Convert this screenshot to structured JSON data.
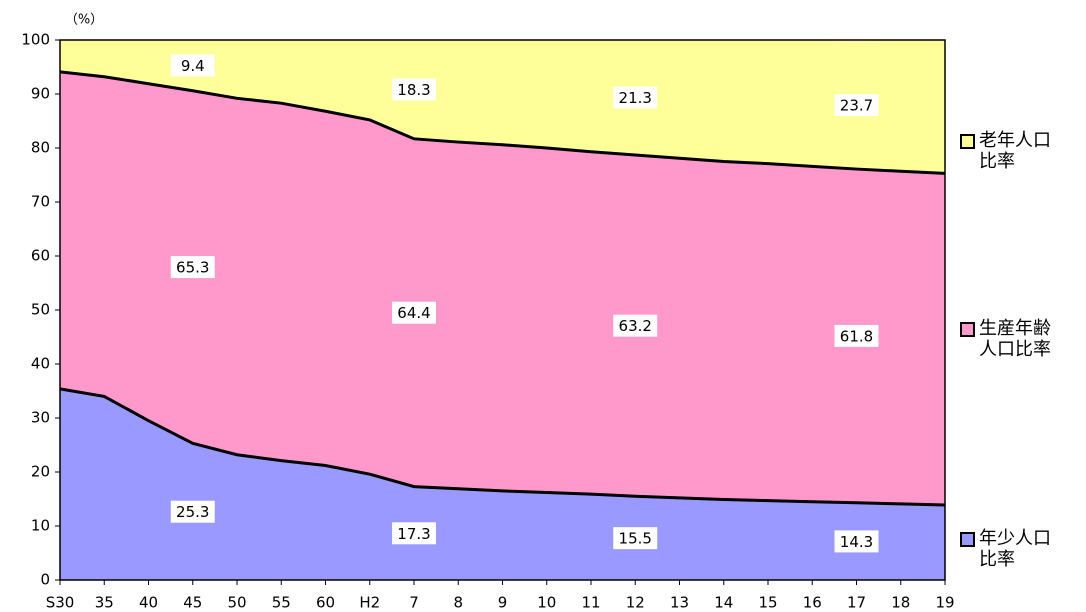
{
  "chart_data": {
    "type": "stacked_area",
    "ylabel": "（%）",
    "categories": [
      "S30",
      "35",
      "40",
      "45",
      "50",
      "55",
      "60",
      "H2",
      "7",
      "8",
      "9",
      "10",
      "11",
      "12",
      "13",
      "14",
      "15",
      "16",
      "17",
      "18",
      "19"
    ],
    "series": [
      {
        "name": "年少人口比率",
        "color": "#9999ff",
        "values": [
          35.4,
          34.0,
          29.5,
          25.3,
          23.2,
          22.1,
          21.2,
          19.6,
          17.3,
          16.9,
          16.5,
          16.2,
          15.9,
          15.5,
          15.2,
          14.9,
          14.7,
          14.5,
          14.3,
          14.1,
          13.9
        ]
      },
      {
        "name": "生産年齢人口比率",
        "color": "#ff99cc",
        "values": [
          58.7,
          59.2,
          62.4,
          65.3,
          66.0,
          66.2,
          65.6,
          65.6,
          64.4,
          64.2,
          64.1,
          63.8,
          63.4,
          63.2,
          62.9,
          62.6,
          62.4,
          62.1,
          61.8,
          61.6,
          61.4
        ]
      },
      {
        "name": "老年人口比率",
        "color": "#ffff99",
        "values": [
          5.9,
          6.8,
          8.1,
          9.4,
          10.8,
          11.7,
          13.2,
          14.8,
          18.3,
          18.9,
          19.4,
          20.0,
          20.7,
          21.3,
          21.9,
          22.5,
          22.9,
          23.4,
          23.7,
          24.3,
          24.7
        ]
      }
    ],
    "ylim": [
      0,
      100
    ],
    "yticks": [
      0,
      10,
      20,
      30,
      40,
      50,
      60,
      70,
      80,
      90,
      100
    ],
    "grid": false
  }
}
